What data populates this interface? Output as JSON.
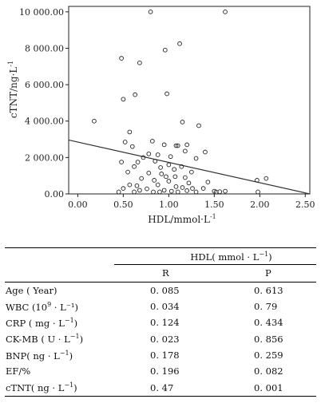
{
  "chart_data": {
    "type": "scatter",
    "title": "",
    "xlabel": "HDL/mmol·L",
    "xlabel_sup": "-1",
    "ylabel": "cTNT/ng·L",
    "ylabel_sup": "-1",
    "xlim": [
      -0.1,
      2.55
    ],
    "ylim": [
      0,
      10300
    ],
    "xticks": [
      0.0,
      0.5,
      1.0,
      1.5,
      2.0,
      2.5
    ],
    "xtick_labels": [
      "0.00",
      "0.50",
      "1.00",
      "1.50",
      "2.00",
      "2.50"
    ],
    "yticks": [
      0,
      2000,
      4000,
      6000,
      8000,
      10000
    ],
    "ytick_labels": [
      "0.00",
      "2 000.00",
      "4 000.00",
      "6 000.00",
      "8 000.00",
      "10 000.00"
    ],
    "grid": false,
    "fit_line": {
      "x": [
        -0.1,
        2.55
      ],
      "y": [
        2960,
        0
      ]
    },
    "points": [
      {
        "x": 0.8,
        "y": 10000
      },
      {
        "x": 1.62,
        "y": 10000
      },
      {
        "x": 1.12,
        "y": 8250
      },
      {
        "x": 0.96,
        "y": 7900
      },
      {
        "x": 0.48,
        "y": 7450
      },
      {
        "x": 0.68,
        "y": 7200
      },
      {
        "x": 0.98,
        "y": 5500
      },
      {
        "x": 0.63,
        "y": 5450
      },
      {
        "x": 0.5,
        "y": 5200
      },
      {
        "x": 0.18,
        "y": 4000
      },
      {
        "x": 1.15,
        "y": 3950
      },
      {
        "x": 1.33,
        "y": 3750
      },
      {
        "x": 0.57,
        "y": 3400
      },
      {
        "x": 0.52,
        "y": 2850
      },
      {
        "x": 0.82,
        "y": 2900
      },
      {
        "x": 0.6,
        "y": 2600
      },
      {
        "x": 0.95,
        "y": 2700
      },
      {
        "x": 1.1,
        "y": 2650
      },
      {
        "x": 1.08,
        "y": 2650
      },
      {
        "x": 1.2,
        "y": 2700
      },
      {
        "x": 1.4,
        "y": 2300
      },
      {
        "x": 1.18,
        "y": 2350
      },
      {
        "x": 0.78,
        "y": 2200
      },
      {
        "x": 0.72,
        "y": 2000
      },
      {
        "x": 0.88,
        "y": 2150
      },
      {
        "x": 1.02,
        "y": 2050
      },
      {
        "x": 1.3,
        "y": 1950
      },
      {
        "x": 0.48,
        "y": 1750
      },
      {
        "x": 0.66,
        "y": 1750
      },
      {
        "x": 0.85,
        "y": 1800
      },
      {
        "x": 1.0,
        "y": 1600
      },
      {
        "x": 0.62,
        "y": 1500
      },
      {
        "x": 0.91,
        "y": 1450
      },
      {
        "x": 1.06,
        "y": 1350
      },
      {
        "x": 1.14,
        "y": 1500
      },
      {
        "x": 1.25,
        "y": 1200
      },
      {
        "x": 0.55,
        "y": 1200
      },
      {
        "x": 0.78,
        "y": 1150
      },
      {
        "x": 0.92,
        "y": 1100
      },
      {
        "x": 0.97,
        "y": 950
      },
      {
        "x": 1.07,
        "y": 950
      },
      {
        "x": 1.18,
        "y": 900
      },
      {
        "x": 0.7,
        "y": 850
      },
      {
        "x": 0.84,
        "y": 750
      },
      {
        "x": 1.0,
        "y": 700
      },
      {
        "x": 1.22,
        "y": 600
      },
      {
        "x": 1.43,
        "y": 650
      },
      {
        "x": 0.57,
        "y": 500
      },
      {
        "x": 0.65,
        "y": 450
      },
      {
        "x": 0.88,
        "y": 500
      },
      {
        "x": 1.08,
        "y": 400
      },
      {
        "x": 1.15,
        "y": 350
      },
      {
        "x": 1.26,
        "y": 300
      },
      {
        "x": 1.38,
        "y": 300
      },
      {
        "x": 0.5,
        "y": 300
      },
      {
        "x": 0.76,
        "y": 280
      },
      {
        "x": 0.68,
        "y": 200
      },
      {
        "x": 0.95,
        "y": 200
      },
      {
        "x": 1.03,
        "y": 150
      },
      {
        "x": 1.2,
        "y": 180
      },
      {
        "x": 1.5,
        "y": 150
      },
      {
        "x": 1.56,
        "y": 120
      },
      {
        "x": 1.62,
        "y": 150
      },
      {
        "x": 0.62,
        "y": 80
      },
      {
        "x": 0.83,
        "y": 60
      },
      {
        "x": 0.9,
        "y": 50
      },
      {
        "x": 1.1,
        "y": 60
      },
      {
        "x": 1.3,
        "y": 50
      },
      {
        "x": 1.52,
        "y": 40
      },
      {
        "x": 0.45,
        "y": 40
      },
      {
        "x": 1.97,
        "y": 750
      },
      {
        "x": 2.07,
        "y": 850
      },
      {
        "x": 1.98,
        "y": 80
      }
    ]
  },
  "table": {
    "group_header_text": "HDL( mmol · L",
    "group_header_sup": "−1",
    "group_header_close": ")",
    "col_r": "R",
    "col_p": "P",
    "rows": [
      {
        "label": "Age ( Year)",
        "sup": "",
        "label_close": "",
        "r": "0. 085",
        "p": "0. 613"
      },
      {
        "label": "WBC (10",
        "sup": "9",
        "label_close": " · L⁻¹)",
        "r": "0. 034",
        "p": "0. 79"
      },
      {
        "label": "CRP ( mg · L",
        "sup": "−1",
        "label_close": ")",
        "r": "0. 124",
        "p": "0. 434"
      },
      {
        "label": "CK-MB ( U · L",
        "sup": "−1",
        "label_close": ")",
        "r": "0. 023",
        "p": "0. 856"
      },
      {
        "label": "BNP( ng · L",
        "sup": "−1",
        "label_close": ")",
        "r": "0. 178",
        "p": "0. 259"
      },
      {
        "label": "EF/%",
        "sup": "",
        "label_close": "",
        "r": "0. 196",
        "p": "0. 082"
      },
      {
        "label": "cTNT( ng · L",
        "sup": "−1",
        "label_close": ")",
        "r": "0. 47",
        "p": "0. 001"
      }
    ]
  }
}
